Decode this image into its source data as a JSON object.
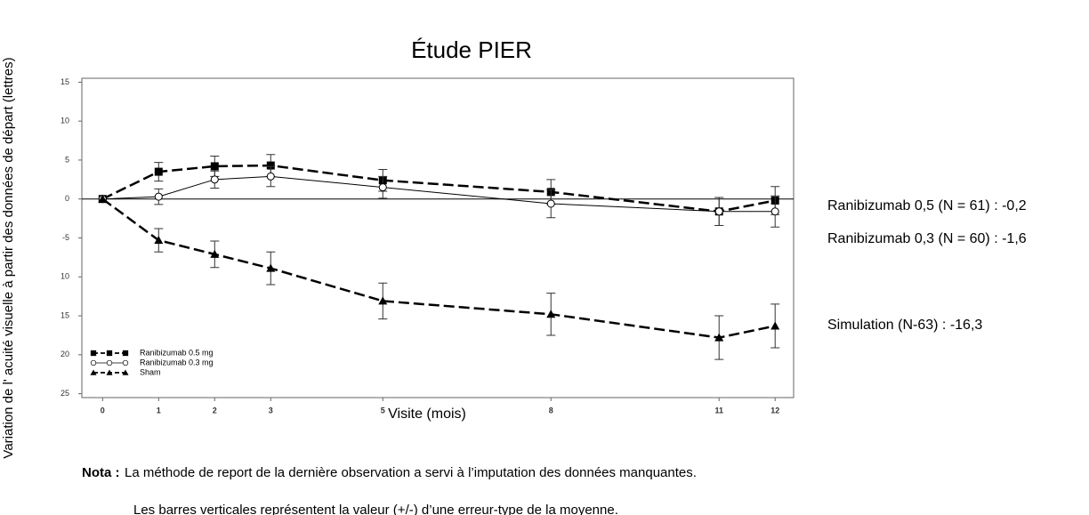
{
  "chart_data": {
    "type": "line",
    "title": "Étude PIER",
    "x_label": "Visite (mois)",
    "y_label": "Variation de l'   acuité visuelle à partir des données de départ (lettres)",
    "x": [
      0,
      1,
      2,
      3,
      5,
      8,
      11,
      12
    ],
    "series": [
      {
        "name": "Ranibizumab 0.5 mg",
        "color": "#000000",
        "dash": true,
        "width": 2.5,
        "marker": "square",
        "values": [
          0,
          3.5,
          4.2,
          4.3,
          2.4,
          0.9,
          -1.6,
          -0.2
        ],
        "errors": [
          null,
          1.2,
          1.3,
          1.4,
          1.4,
          1.6,
          1.8,
          1.8
        ]
      },
      {
        "name": "Ranibizumab 0.3 mg",
        "color": "#000000",
        "dash": false,
        "width": 1,
        "marker": "circle",
        "values": [
          0,
          0.3,
          2.5,
          2.9,
          1.5,
          -0.6,
          -1.6,
          -1.6
        ],
        "errors": [
          null,
          1.0,
          1.1,
          1.3,
          1.4,
          1.8,
          1.8,
          2.0
        ]
      },
      {
        "name": "Sham",
        "color": "#000000",
        "dash": true,
        "width": 2.5,
        "marker": "triangle",
        "values": [
          0,
          -5.3,
          -7.1,
          -8.9,
          -13.1,
          -14.8,
          -17.8,
          -16.3
        ],
        "errors": [
          null,
          1.5,
          1.7,
          2.1,
          2.3,
          2.7,
          2.8,
          2.8
        ]
      }
    ],
    "xlim": [
      -0.37,
      12.33
    ],
    "ylim": [
      -25.5,
      15.5
    ],
    "xticks": [
      0,
      1,
      2,
      3,
      5,
      8,
      11,
      12
    ],
    "yticks": [
      {
        "value": -25,
        "label": "25"
      },
      {
        "value": -20,
        "label": "20"
      },
      {
        "value": -15,
        "label": "15"
      },
      {
        "value": -10,
        "label": "10"
      },
      -5,
      0,
      5,
      10,
      15
    ],
    "zero_line": true,
    "legend": "lower left",
    "annotations": [
      "Ranibizumab 0,5 (N = 61) : -0,2",
      "Ranibizumab 0,3 (N = 60) : -1,6",
      "Simulation (N-63) : -16,3"
    ],
    "note_label": "Nota :",
    "notes": [
      "La méthode de report de la dernière observation a servi à l’imputation des données manquantes.",
      "Les barres verticales représentent la valeur (+/-) d’une erreur-type de la moyenne."
    ]
  }
}
